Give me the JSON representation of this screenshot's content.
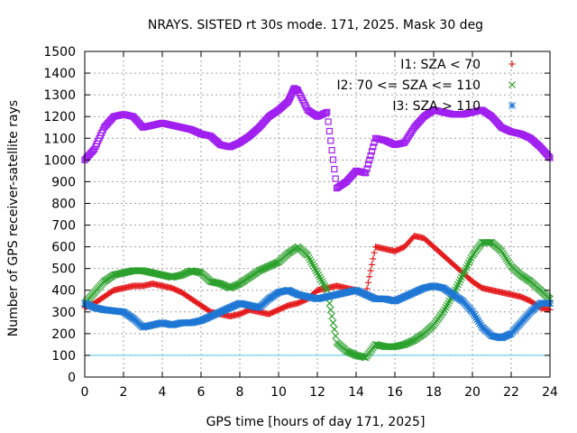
{
  "chart_data": {
    "type": "scatter",
    "title": "NRAYS. SISTED rt 30s mode. 171, 2025. Mask 30 deg",
    "xlabel": "GPS time [hours of day 171, 2025]",
    "ylabel": "Number of GPS receiver-satellite rays",
    "xlim": [
      0,
      24
    ],
    "ylim": [
      0,
      1500
    ],
    "xticks": [
      "0",
      "2",
      "4",
      "6",
      "8",
      "10",
      "12",
      "14",
      "16",
      "18",
      "20",
      "22",
      "24"
    ],
    "yticks": [
      "0",
      "100",
      "200",
      "300",
      "400",
      "500",
      "600",
      "700",
      "800",
      "900",
      "1000",
      "1100",
      "1200",
      "1300",
      "1400",
      "1500"
    ],
    "grid": true,
    "legend_position": "top-right",
    "reference_line": {
      "y": 100,
      "color": "#4dd0e1"
    },
    "series": [
      {
        "name": "I1: SZA < 70",
        "marker": "+",
        "color": "#e41a1c",
        "x": [
          0.0,
          0.5,
          1.0,
          1.5,
          2.0,
          2.5,
          3.0,
          3.5,
          4.0,
          4.5,
          5.0,
          5.5,
          6.0,
          6.5,
          7.0,
          7.5,
          8.0,
          8.5,
          9.0,
          9.5,
          10.0,
          10.5,
          11.0,
          11.5,
          12.0,
          12.5,
          13.0,
          13.5,
          14.0,
          14.5,
          15.0,
          15.5,
          16.0,
          16.5,
          17.0,
          17.5,
          18.0,
          18.5,
          19.0,
          19.5,
          20.0,
          20.5,
          21.0,
          21.5,
          22.0,
          22.5,
          23.0,
          23.5,
          24.0
        ],
        "y": [
          320,
          340,
          370,
          400,
          410,
          420,
          420,
          430,
          420,
          410,
          390,
          360,
          330,
          300,
          290,
          280,
          290,
          310,
          300,
          290,
          310,
          330,
          340,
          360,
          400,
          410,
          420,
          410,
          400,
          380,
          600,
          590,
          580,
          600,
          650,
          640,
          600,
          560,
          520,
          480,
          440,
          410,
          400,
          390,
          380,
          370,
          350,
          320,
          310
        ]
      },
      {
        "name": "I2: 70 <= SZA <= 110",
        "marker": "x",
        "color": "#2ca02c",
        "x": [
          0.0,
          0.5,
          1.0,
          1.5,
          2.0,
          2.5,
          3.0,
          3.5,
          4.0,
          4.5,
          5.0,
          5.5,
          6.0,
          6.5,
          7.0,
          7.5,
          8.0,
          8.5,
          9.0,
          9.5,
          10.0,
          10.5,
          11.0,
          11.5,
          12.0,
          12.5,
          13.0,
          13.5,
          14.0,
          14.5,
          15.0,
          15.5,
          16.0,
          16.5,
          17.0,
          17.5,
          18.0,
          18.5,
          19.0,
          19.5,
          20.0,
          20.5,
          21.0,
          21.5,
          22.0,
          22.5,
          23.0,
          23.5,
          24.0
        ],
        "y": [
          340,
          390,
          440,
          470,
          480,
          490,
          490,
          480,
          470,
          460,
          470,
          490,
          480,
          440,
          430,
          410,
          430,
          460,
          490,
          510,
          530,
          570,
          600,
          560,
          480,
          400,
          160,
          120,
          100,
          90,
          150,
          140,
          140,
          150,
          170,
          200,
          240,
          300,
          380,
          470,
          560,
          620,
          620,
          580,
          510,
          470,
          440,
          400,
          360
        ]
      },
      {
        "name": "I3: SZA > 110",
        "marker": "*",
        "color": "#1f77d4",
        "x": [
          0.0,
          0.5,
          1.0,
          1.5,
          2.0,
          2.5,
          3.0,
          3.5,
          4.0,
          4.5,
          5.0,
          5.5,
          6.0,
          6.5,
          7.0,
          7.5,
          8.0,
          8.5,
          9.0,
          9.5,
          10.0,
          10.5,
          11.0,
          11.5,
          12.0,
          12.5,
          13.0,
          13.5,
          14.0,
          14.5,
          15.0,
          15.5,
          16.0,
          16.5,
          17.0,
          17.5,
          18.0,
          18.5,
          19.0,
          19.5,
          20.0,
          20.5,
          21.0,
          21.5,
          22.0,
          22.5,
          23.0,
          23.5,
          24.0
        ],
        "y": [
          340,
          320,
          310,
          305,
          300,
          270,
          230,
          240,
          250,
          240,
          250,
          250,
          260,
          280,
          300,
          320,
          340,
          330,
          320,
          360,
          390,
          400,
          380,
          370,
          360,
          370,
          380,
          390,
          400,
          380,
          360,
          360,
          350,
          370,
          390,
          410,
          420,
          410,
          380,
          350,
          300,
          230,
          190,
          180,
          200,
          250,
          300,
          340,
          340
        ]
      },
      {
        "name": "NRAYS (total)",
        "marker": "square",
        "color": "#a020f0",
        "show_in_legend": false,
        "x": [
          0.0,
          0.5,
          1.0,
          1.5,
          2.0,
          2.5,
          3.0,
          3.5,
          4.0,
          4.5,
          5.0,
          5.5,
          6.0,
          6.5,
          7.0,
          7.5,
          8.0,
          8.5,
          9.0,
          9.5,
          10.0,
          10.5,
          10.8,
          11.0,
          11.5,
          12.0,
          12.5,
          13.0,
          13.5,
          14.0,
          14.5,
          15.0,
          15.5,
          16.0,
          16.5,
          17.0,
          17.5,
          18.0,
          18.5,
          19.0,
          19.5,
          20.0,
          20.5,
          21.0,
          21.5,
          22.0,
          22.5,
          23.0,
          23.5,
          24.0
        ],
        "y": [
          1000,
          1050,
          1150,
          1200,
          1210,
          1200,
          1150,
          1160,
          1170,
          1160,
          1150,
          1140,
          1120,
          1110,
          1070,
          1060,
          1080,
          1110,
          1150,
          1200,
          1230,
          1270,
          1330,
          1320,
          1230,
          1200,
          1220,
          870,
          900,
          950,
          940,
          1100,
          1090,
          1070,
          1080,
          1150,
          1200,
          1230,
          1220,
          1210,
          1210,
          1220,
          1230,
          1200,
          1150,
          1130,
          1120,
          1100,
          1060,
          1010
        ]
      }
    ]
  }
}
